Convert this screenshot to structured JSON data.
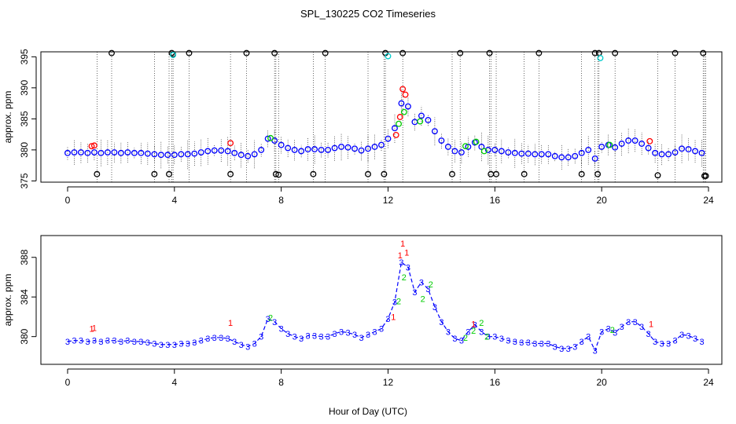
{
  "title": "SPL_130225  CO2 Timeseries",
  "colors": {
    "background": "#ffffff",
    "frame": "#000000",
    "range_lines": "#000000",
    "outliers": "#000000",
    "series_1": "#ff0000",
    "series_2": "#00cc00",
    "series_3": "#0000ff",
    "cyan_marks": "#00cccc"
  },
  "chart_data": [
    {
      "id": "top",
      "type": "scatter",
      "title": "SPL_130225  CO2 Timeseries",
      "xlabel": "",
      "ylabel": "approx. ppm",
      "xlim": [
        -1,
        24.5
      ],
      "ylim": [
        374.8,
        395.8
      ],
      "xticks": [
        0,
        4,
        8,
        12,
        16,
        20,
        24
      ],
      "yticks": [
        375,
        380,
        385,
        390,
        395
      ],
      "legend": "none",
      "grid": false,
      "series": [
        {
          "name": "3",
          "color": "#0000ff",
          "x": [
            0,
            0.25,
            0.5,
            0.75,
            1,
            1.25,
            1.5,
            1.75,
            2,
            2.25,
            2.5,
            2.75,
            3,
            3.25,
            3.5,
            3.75,
            4,
            4.25,
            4.5,
            4.75,
            5,
            5.25,
            5.5,
            5.75,
            6,
            6.25,
            6.5,
            6.75,
            7,
            7.25,
            7.5,
            7.75,
            8,
            8.25,
            8.5,
            8.75,
            9,
            9.25,
            9.5,
            9.75,
            10,
            10.25,
            10.5,
            10.75,
            11,
            11.25,
            11.5,
            11.75,
            12,
            12.25,
            12.5,
            12.75,
            13,
            13.25,
            13.5,
            13.75,
            14,
            14.25,
            14.5,
            14.75,
            15,
            15.25,
            15.5,
            15.75,
            16,
            16.25,
            16.5,
            16.75,
            17,
            17.25,
            17.5,
            17.75,
            18,
            18.25,
            18.5,
            18.75,
            19,
            19.25,
            19.5,
            19.75,
            20,
            20.25,
            20.5,
            20.75,
            21,
            21.25,
            21.5,
            21.75,
            22,
            22.25,
            22.5,
            22.75,
            23,
            23.25,
            23.5,
            23.75
          ],
          "y": [
            379.5,
            379.6,
            379.6,
            379.5,
            379.6,
            379.5,
            379.6,
            379.6,
            379.5,
            379.6,
            379.5,
            379.5,
            379.4,
            379.3,
            379.2,
            379.2,
            379.2,
            379.3,
            379.3,
            379.4,
            379.6,
            379.8,
            379.9,
            379.9,
            379.8,
            379.5,
            379.2,
            379,
            379.3,
            380,
            381.8,
            381.5,
            380.8,
            380.3,
            380,
            379.8,
            380.1,
            380.1,
            380,
            380,
            380.3,
            380.5,
            380.4,
            380.2,
            379.9,
            380.2,
            380.5,
            380.8,
            381.8,
            383.5,
            387.5,
            387,
            384.5,
            385.5,
            384.8,
            383,
            381.5,
            380.5,
            379.8,
            379.6,
            380.5,
            381.2,
            380.5,
            380,
            380,
            379.8,
            379.6,
            379.5,
            379.4,
            379.4,
            379.3,
            379.3,
            379.3,
            379,
            378.8,
            378.8,
            379,
            379.5,
            380,
            378.6,
            380.5,
            380.8,
            380.4,
            381,
            381.5,
            381.5,
            381,
            380.3,
            379.5,
            379.3,
            379.3,
            379.6,
            380.2,
            380.1,
            379.8,
            379.5
          ]
        },
        {
          "name": "1",
          "color": "#ff0000",
          "x": [
            0.9,
            1.0,
            6.1,
            12.3,
            12.45,
            12.55,
            12.65,
            21.8
          ],
          "y": [
            380.6,
            380.7,
            381.1,
            382.4,
            385.3,
            389.8,
            388.9,
            381.4
          ]
        },
        {
          "name": "2",
          "color": "#00cc00",
          "x": [
            7.6,
            12.4,
            12.6,
            13.2,
            14.9,
            15.3,
            15.6,
            20.3
          ],
          "y": [
            381.9,
            384.2,
            386.1,
            384.6,
            380.6,
            381.3,
            379.8,
            380.8
          ]
        },
        {
          "name": "outliers",
          "color": "#000000",
          "x": [
            1.1,
            1.65,
            3.25,
            3.8,
            3.9,
            3.95,
            4.55,
            6.1,
            6.7,
            7.75,
            7.8,
            7.9,
            9.2,
            9.65,
            11.25,
            11.85,
            11.9,
            12.55,
            14.4,
            14.7,
            15.8,
            15.85,
            16.05,
            17.1,
            17.65,
            19.25,
            19.75,
            19.85,
            19.9,
            20.5,
            22.1,
            22.75,
            23.8,
            23.85,
            23.9
          ],
          "y": [
            376.1,
            395.6,
            376.1,
            376.1,
            395.6,
            395.4,
            395.6,
            376.1,
            395.6,
            395.6,
            376.1,
            376.0,
            376.1,
            395.6,
            376.1,
            376.1,
            395.6,
            395.6,
            376.1,
            395.6,
            395.6,
            376.1,
            376.1,
            376.1,
            395.6,
            376.1,
            395.6,
            376.1,
            395.6,
            395.6,
            375.9,
            395.6,
            395.6,
            375.8,
            375.8
          ]
        },
        {
          "name": "cyan",
          "color": "#00cccc",
          "x": [
            3.95,
            12.0,
            19.95
          ],
          "y": [
            395.3,
            395.1,
            394.8
          ]
        }
      ]
    },
    {
      "id": "bottom",
      "type": "line",
      "title": "",
      "xlabel": "Hour of Day (UTC)",
      "ylabel": "approx. ppm",
      "xlim": [
        -1,
        24.5
      ],
      "ylim": [
        377.2,
        390.2
      ],
      "xticks": [
        0,
        4,
        8,
        12,
        16,
        20,
        24
      ],
      "yticks": [
        380,
        384,
        388
      ],
      "legend": "none",
      "grid": false,
      "markers": [
        "1",
        "2",
        "3"
      ],
      "series": [
        {
          "name": "3",
          "color": "#0000ff",
          "x": [
            0,
            0.25,
            0.5,
            0.75,
            1,
            1.25,
            1.5,
            1.75,
            2,
            2.25,
            2.5,
            2.75,
            3,
            3.25,
            3.5,
            3.75,
            4,
            4.25,
            4.5,
            4.75,
            5,
            5.25,
            5.5,
            5.75,
            6,
            6.25,
            6.5,
            6.75,
            7,
            7.25,
            7.5,
            7.75,
            8,
            8.25,
            8.5,
            8.75,
            9,
            9.25,
            9.5,
            9.75,
            10,
            10.25,
            10.5,
            10.75,
            11,
            11.25,
            11.5,
            11.75,
            12,
            12.25,
            12.5,
            12.75,
            13,
            13.25,
            13.5,
            13.75,
            14,
            14.25,
            14.5,
            14.75,
            15,
            15.25,
            15.5,
            15.75,
            16,
            16.25,
            16.5,
            16.75,
            17,
            17.25,
            17.5,
            17.75,
            18,
            18.25,
            18.5,
            18.75,
            19,
            19.25,
            19.5,
            19.75,
            20,
            20.25,
            20.5,
            20.75,
            21,
            21.25,
            21.5,
            21.75,
            22,
            22.25,
            22.5,
            22.75,
            23,
            23.25,
            23.5,
            23.75
          ],
          "y": [
            379.5,
            379.6,
            379.6,
            379.5,
            379.6,
            379.5,
            379.6,
            379.6,
            379.5,
            379.6,
            379.5,
            379.5,
            379.4,
            379.3,
            379.2,
            379.2,
            379.2,
            379.3,
            379.3,
            379.4,
            379.6,
            379.8,
            379.9,
            379.9,
            379.8,
            379.5,
            379.2,
            379,
            379.3,
            380,
            381.8,
            381.5,
            380.8,
            380.3,
            380,
            379.8,
            380.1,
            380.1,
            380,
            380,
            380.3,
            380.5,
            380.4,
            380.2,
            379.9,
            380.2,
            380.5,
            380.8,
            381.8,
            383.5,
            387.5,
            387,
            384.5,
            385.5,
            384.8,
            383,
            381.5,
            380.5,
            379.8,
            379.6,
            380.5,
            381.2,
            380.5,
            380,
            380,
            379.8,
            379.6,
            379.5,
            379.4,
            379.4,
            379.3,
            379.3,
            379.3,
            379,
            378.8,
            378.8,
            379,
            379.5,
            380,
            378.6,
            380.5,
            380.8,
            380.4,
            381,
            381.5,
            381.5,
            381,
            380.3,
            379.5,
            379.3,
            379.3,
            379.6,
            380.2,
            380.1,
            379.8,
            379.5
          ]
        },
        {
          "name": "1",
          "color": "#ff0000",
          "x": [
            0.9,
            1.0,
            6.1,
            12.2,
            12.45,
            12.55,
            12.7,
            15.2,
            21.85
          ],
          "y": [
            380.8,
            380.9,
            381.4,
            382.0,
            388.2,
            389.4,
            388.5,
            381.3,
            381.3
          ]
        },
        {
          "name": "2",
          "color": "#00cc00",
          "x": [
            7.6,
            12.4,
            12.6,
            13.3,
            13.6,
            14.9,
            15.2,
            15.5,
            15.7,
            20.4
          ],
          "y": [
            381.9,
            383.6,
            386.0,
            383.8,
            385.3,
            379.9,
            380.6,
            381.4,
            380.0,
            380.7
          ]
        }
      ]
    }
  ]
}
